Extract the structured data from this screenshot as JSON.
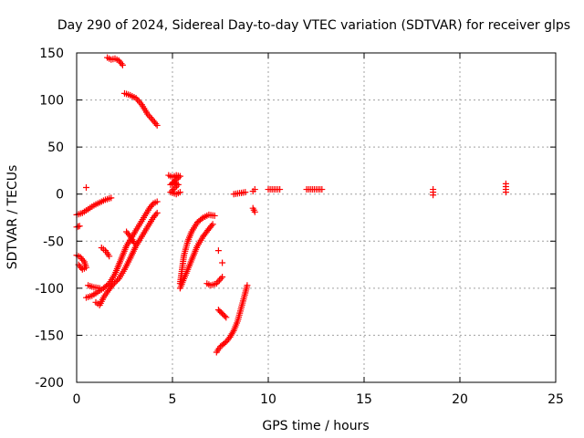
{
  "chart_data": {
    "type": "scatter",
    "title": "Day 290 of 2024, Sidereal Day-to-day VTEC variation (SDTVAR) for receiver glps",
    "xlabel": "GPS time / hours",
    "ylabel": "SDTVAR / TECUs",
    "xlim": [
      0,
      25
    ],
    "ylim": [
      -200,
      150
    ],
    "xticks": [
      "0",
      "5",
      "10",
      "15",
      "20",
      "25"
    ],
    "yticks": [
      "150",
      "100",
      "50",
      "0",
      "-50",
      "-100",
      "-150",
      "-200"
    ],
    "grid": true,
    "marker": "plus",
    "color": "#ff0000",
    "series": [
      {
        "segments": [
          [
            [
              1.6,
              145
            ],
            [
              1.8,
              143
            ],
            [
              2.0,
              144
            ],
            [
              2.2,
              142
            ],
            [
              2.4,
              137
            ]
          ],
          [
            [
              2.5,
              107
            ],
            [
              2.8,
              105
            ],
            [
              3.1,
              102
            ],
            [
              3.4,
              95
            ],
            [
              3.7,
              85
            ],
            [
              4.0,
              78
            ],
            [
              4.2,
              73
            ]
          ],
          [
            [
              0.0,
              -22
            ],
            [
              0.3,
              -20
            ],
            [
              0.6,
              -16
            ],
            [
              0.9,
              -12
            ],
            [
              1.2,
              -9
            ],
            [
              1.5,
              -6
            ],
            [
              1.8,
              -4
            ]
          ],
          [
            [
              0.0,
              -35
            ],
            [
              0.15,
              -34
            ]
          ],
          [
            [
              0.0,
              -65
            ],
            [
              0.2,
              -67
            ],
            [
              0.4,
              -72
            ],
            [
              0.5,
              -78
            ],
            [
              0.3,
              -80
            ],
            [
              0.1,
              -75
            ]
          ],
          [
            [
              0.5,
              7
            ]
          ],
          [
            [
              0.5,
              -110
            ],
            [
              0.8,
              -108
            ],
            [
              1.1,
              -104
            ],
            [
              1.4,
              -100
            ],
            [
              1.7,
              -95
            ],
            [
              2.0,
              -85
            ],
            [
              2.3,
              -70
            ],
            [
              2.6,
              -55
            ],
            [
              2.9,
              -45
            ],
            [
              3.2,
              -35
            ],
            [
              3.5,
              -25
            ],
            [
              3.8,
              -15
            ],
            [
              4.0,
              -10
            ],
            [
              4.2,
              -8
            ]
          ],
          [
            [
              1.0,
              -115
            ],
            [
              1.2,
              -118
            ],
            [
              1.4,
              -110
            ],
            [
              1.6,
              -104
            ],
            [
              1.9,
              -96
            ],
            [
              2.2,
              -90
            ],
            [
              2.5,
              -80
            ],
            [
              2.8,
              -68
            ],
            [
              3.1,
              -55
            ],
            [
              3.4,
              -45
            ],
            [
              3.7,
              -35
            ],
            [
              4.0,
              -25
            ],
            [
              4.2,
              -20
            ]
          ],
          [
            [
              1.3,
              -57
            ],
            [
              1.5,
              -60
            ],
            [
              1.7,
              -66
            ]
          ],
          [
            [
              2.6,
              -40
            ],
            [
              2.8,
              -45
            ],
            [
              3.0,
              -52
            ]
          ],
          [
            [
              0.6,
              -97
            ],
            [
              0.9,
              -99
            ],
            [
              1.2,
              -100
            ]
          ],
          [
            [
              4.8,
              20
            ],
            [
              5.0,
              18
            ],
            [
              5.2,
              20
            ],
            [
              5.4,
              19
            ],
            [
              4.9,
              10
            ],
            [
              5.1,
              12
            ],
            [
              5.3,
              10
            ],
            [
              4.9,
              2
            ],
            [
              5.2,
              0
            ],
            [
              5.4,
              2
            ]
          ],
          [
            [
              5.4,
              -95
            ],
            [
              5.5,
              -80
            ],
            [
              5.6,
              -65
            ],
            [
              5.8,
              -50
            ],
            [
              6.0,
              -40
            ],
            [
              6.3,
              -30
            ],
            [
              6.6,
              -25
            ],
            [
              6.9,
              -22
            ],
            [
              7.2,
              -23
            ]
          ],
          [
            [
              5.4,
              -100
            ],
            [
              5.6,
              -90
            ],
            [
              5.8,
              -80
            ],
            [
              6.0,
              -70
            ],
            [
              6.3,
              -55
            ],
            [
              6.6,
              -45
            ],
            [
              6.9,
              -37
            ],
            [
              7.1,
              -32
            ]
          ],
          [
            [
              6.8,
              -95
            ],
            [
              7.0,
              -97
            ],
            [
              7.3,
              -95
            ],
            [
              7.6,
              -88
            ]
          ],
          [
            [
              7.4,
              -60
            ]
          ],
          [
            [
              7.6,
              -73
            ]
          ],
          [
            [
              7.3,
              -168
            ],
            [
              7.5,
              -162
            ],
            [
              7.8,
              -157
            ],
            [
              8.0,
              -152
            ],
            [
              8.2,
              -145
            ],
            [
              8.4,
              -135
            ],
            [
              8.6,
              -120
            ],
            [
              8.8,
              -105
            ],
            [
              8.9,
              -97
            ]
          ],
          [
            [
              7.4,
              -123
            ],
            [
              7.6,
              -127
            ],
            [
              7.8,
              -131
            ]
          ],
          [
            [
              8.2,
              0
            ],
            [
              8.5,
              1
            ],
            [
              8.8,
              2
            ]
          ],
          [
            [
              9.2,
              3
            ],
            [
              9.3,
              5
            ]
          ],
          [
            [
              9.2,
              -15
            ],
            [
              9.3,
              -19
            ]
          ],
          [
            [
              10.0,
              5
            ],
            [
              10.3,
              5
            ],
            [
              10.6,
              5
            ]
          ],
          [
            [
              12.0,
              5
            ],
            [
              12.4,
              5
            ],
            [
              12.8,
              5
            ]
          ],
          [
            [
              18.6,
              5
            ],
            [
              18.6,
              2
            ],
            [
              18.6,
              -1
            ]
          ],
          [
            [
              22.4,
              11
            ],
            [
              22.4,
              8
            ],
            [
              22.4,
              5
            ],
            [
              22.4,
              2
            ]
          ]
        ]
      }
    ]
  }
}
